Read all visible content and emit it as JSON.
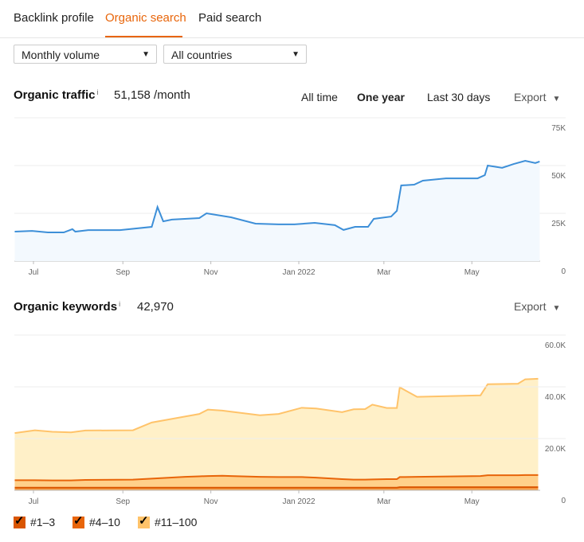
{
  "tabs": [
    {
      "label": "Backlink profile",
      "active": false
    },
    {
      "label": "Organic search",
      "active": true
    },
    {
      "label": "Paid search",
      "active": false
    }
  ],
  "filters": {
    "volume": {
      "value": "Monthly volume"
    },
    "country": {
      "value": "All countries"
    },
    "caret": "▼"
  },
  "traffic": {
    "title": "Organic traffic",
    "info": "i",
    "value": "51,158 /month",
    "ranges": [
      "All time",
      "One year",
      "Last 30 days"
    ],
    "selected_range": "One year",
    "export": "Export"
  },
  "keywords": {
    "title": "Organic keywords",
    "info": "i",
    "value": "42,970",
    "export": "Export"
  },
  "colors": {
    "accent": "#e8650a",
    "traffic_line": "#3d8fd8",
    "kw_1_3": "#d95500",
    "kw_4_10": "#f0902a",
    "kw_11_100": "#ffc36a"
  },
  "chart_data": [
    {
      "type": "line",
      "x_ticks": [
        [
          "2021-07-01",
          "Jul"
        ],
        [
          "2021-09-01",
          "Sep"
        ],
        [
          "2021-11-01",
          "Nov"
        ],
        [
          "2022-01-01",
          "Jan 2022"
        ],
        [
          "2022-03-01",
          "Mar"
        ],
        [
          "2022-05-01",
          "May"
        ]
      ],
      "y_ticks": [
        [
          0,
          "0"
        ],
        [
          25000,
          "25K"
        ],
        [
          50000,
          "50K"
        ],
        [
          75000,
          "75K"
        ]
      ],
      "ylim": [
        0,
        75000
      ],
      "grid": true,
      "x": [
        "2021-06-18",
        "2021-06-30",
        "2021-07-11",
        "2021-07-22",
        "2021-07-28",
        "2021-07-30",
        "2021-08-08",
        "2021-08-30",
        "2021-09-21",
        "2021-09-25",
        "2021-09-29",
        "2021-10-05",
        "2021-10-24",
        "2021-10-29",
        "2021-11-15",
        "2021-12-02",
        "2021-12-18",
        "2021-12-29",
        "2022-01-12",
        "2022-01-26",
        "2022-02-01",
        "2022-02-09",
        "2022-02-18",
        "2022-02-22",
        "2022-03-06",
        "2022-03-10",
        "2022-03-13",
        "2022-03-22",
        "2022-03-28",
        "2022-04-13",
        "2022-05-05",
        "2022-05-10",
        "2022-05-12",
        "2022-05-22",
        "2022-05-30",
        "2022-06-07",
        "2022-06-14",
        "2022-06-17"
      ],
      "values": [
        15400,
        15800,
        15000,
        15000,
        16700,
        15400,
        16200,
        16200,
        17900,
        28300,
        20800,
        21700,
        22500,
        25000,
        22900,
        19600,
        19200,
        19200,
        20000,
        18800,
        16300,
        17900,
        17900,
        22100,
        23300,
        26300,
        39600,
        40000,
        42100,
        43300,
        43300,
        45000,
        50000,
        48800,
        50800,
        52500,
        51300,
        52100
      ]
    },
    {
      "type": "area",
      "stacked": true,
      "x_ticks": [
        [
          "2021-07-01",
          "Jul"
        ],
        [
          "2021-09-01",
          "Sep"
        ],
        [
          "2021-11-01",
          "Nov"
        ],
        [
          "2022-01-01",
          "Jan 2022"
        ],
        [
          "2022-03-01",
          "Mar"
        ],
        [
          "2022-05-01",
          "May"
        ]
      ],
      "y_ticks": [
        [
          0,
          "0"
        ],
        [
          20000,
          "20.0K"
        ],
        [
          40000,
          "40.0K"
        ],
        [
          60000,
          "60.0K"
        ]
      ],
      "ylim": [
        0,
        60000
      ],
      "grid": true,
      "legend": "bottom-left",
      "x": [
        "2021-06-18",
        "2021-07-02",
        "2021-07-14",
        "2021-07-27",
        "2021-08-06",
        "2021-09-08",
        "2021-09-21",
        "2021-10-14",
        "2021-10-24",
        "2021-10-30",
        "2021-11-09",
        "2021-11-15",
        "2021-12-05",
        "2021-12-18",
        "2022-01-03",
        "2022-01-13",
        "2022-01-31",
        "2022-02-08",
        "2022-02-16",
        "2022-02-21",
        "2022-03-03",
        "2022-03-10",
        "2022-03-12",
        "2022-03-24",
        "2022-05-07",
        "2022-05-12",
        "2022-06-02",
        "2022-06-07",
        "2022-06-16"
      ],
      "series": [
        {
          "name": "#1–3",
          "values": [
            1000,
            1000,
            1000,
            1000,
            1000,
            1000,
            1000,
            1000,
            1000,
            1000,
            1000,
            1000,
            1000,
            1000,
            1000,
            1000,
            1000,
            1000,
            1000,
            1000,
            1000,
            1000,
            1200,
            1200,
            1200,
            1200,
            1200,
            1200,
            1200
          ]
        },
        {
          "name": "#4–10",
          "values": [
            2900,
            2900,
            2800,
            2800,
            3000,
            3100,
            3500,
            4200,
            4400,
            4500,
            4600,
            4500,
            4200,
            4100,
            4100,
            3900,
            3300,
            3100,
            3100,
            3200,
            3300,
            3300,
            3900,
            4000,
            4300,
            4600,
            4600,
            4700,
            4700
          ]
        },
        {
          "name": "#11–100",
          "values": [
            18200,
            19300,
            18800,
            18600,
            19100,
            19100,
            21700,
            23300,
            24100,
            25700,
            25200,
            24900,
            23800,
            24400,
            26800,
            26700,
            25900,
            27200,
            27300,
            28900,
            27500,
            27500,
            34700,
            30900,
            31200,
            35200,
            35400,
            37000,
            37200
          ]
        }
      ]
    }
  ]
}
